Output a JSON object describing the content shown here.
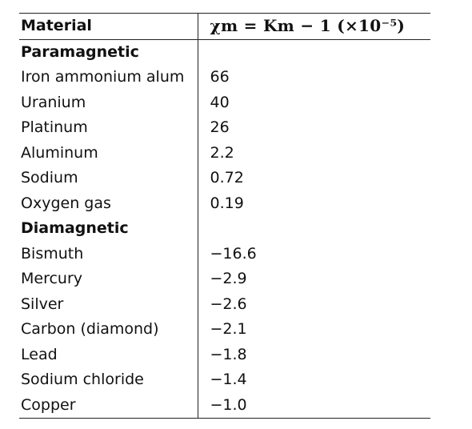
{
  "table": {
    "headers": {
      "material": "Material",
      "value": "χm = Km − 1 (×10⁻⁵)"
    },
    "sections": [
      {
        "title": "Paramagnetic",
        "rows": [
          {
            "material": "Iron ammonium alum",
            "value": "66"
          },
          {
            "material": "Uranium",
            "value": "40"
          },
          {
            "material": "Platinum",
            "value": "26"
          },
          {
            "material": "Aluminum",
            "value": "2.2"
          },
          {
            "material": "Sodium",
            "value": "0.72"
          },
          {
            "material": "Oxygen gas",
            "value": "0.19"
          }
        ]
      },
      {
        "title": "Diamagnetic",
        "rows": [
          {
            "material": "Bismuth",
            "value": "−16.6"
          },
          {
            "material": "Mercury",
            "value": "−2.9"
          },
          {
            "material": "Silver",
            "value": "−2.6"
          },
          {
            "material": "Carbon (diamond)",
            "value": "−2.1"
          },
          {
            "material": "Lead",
            "value": "−1.8"
          },
          {
            "material": "Sodium chloride",
            "value": "−1.4"
          },
          {
            "material": "Copper",
            "value": "−1.0"
          }
        ]
      }
    ]
  }
}
